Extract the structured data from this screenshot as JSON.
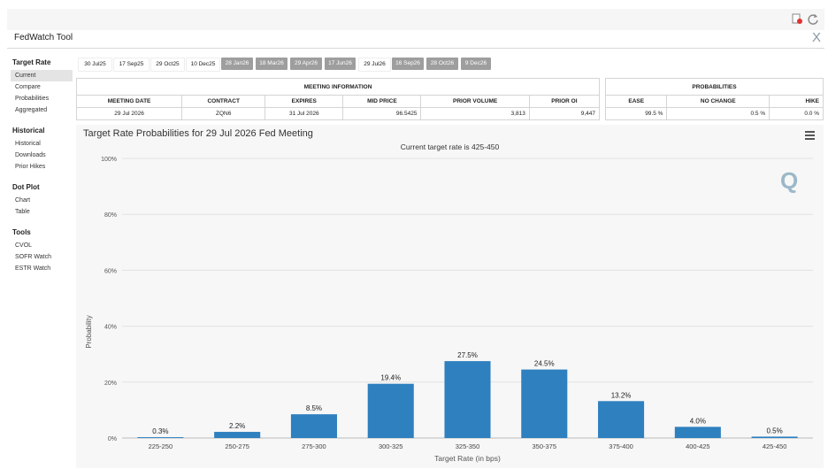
{
  "app": {
    "title": "FedWatch Tool",
    "close_glyph": "X"
  },
  "sidebar": [
    {
      "title": "Target Rate",
      "items": [
        {
          "label": "Current",
          "active": true
        },
        {
          "label": "Compare",
          "active": false
        },
        {
          "label": "Probabilities",
          "active": false
        },
        {
          "label": "Aggregated",
          "active": false
        }
      ]
    },
    {
      "title": "Historical",
      "items": [
        {
          "label": "Historical",
          "active": false
        },
        {
          "label": "Downloads",
          "active": false
        },
        {
          "label": "Prior Hikes",
          "active": false
        }
      ]
    },
    {
      "title": "Dot Plot",
      "items": [
        {
          "label": "Chart",
          "active": false
        },
        {
          "label": "Table",
          "active": false
        }
      ]
    },
    {
      "title": "Tools",
      "items": [
        {
          "label": "CVOL",
          "active": false
        },
        {
          "label": "SOFR Watch",
          "active": false
        },
        {
          "label": "ESTR Watch",
          "active": false
        }
      ]
    }
  ],
  "tabs": [
    {
      "label": "30 Jul25",
      "style": "plain"
    },
    {
      "label": "17 Sep25",
      "style": "plain"
    },
    {
      "label": "29 Oct25",
      "style": "plain"
    },
    {
      "label": "10 Dec25",
      "style": "plain"
    },
    {
      "label": "28 Jan26",
      "style": "gray"
    },
    {
      "label": "18 Mar26",
      "style": "gray"
    },
    {
      "label": "29 Apr26",
      "style": "gray"
    },
    {
      "label": "17 Jun26",
      "style": "gray"
    },
    {
      "label": "29 Jul26",
      "style": "plain"
    },
    {
      "label": "16 Sep26",
      "style": "gray"
    },
    {
      "label": "28 Oct26",
      "style": "gray"
    },
    {
      "label": "9 Dec26",
      "style": "gray"
    }
  ],
  "meeting_info": {
    "title": "MEETING INFORMATION",
    "headers": [
      "MEETING DATE",
      "CONTRACT",
      "EXPIRES",
      "MID PRICE",
      "PRIOR VOLUME",
      "PRIOR OI"
    ],
    "values": [
      "29 Jul 2026",
      "ZQN6",
      "31 Jul 2026",
      "96.5425",
      "3,813",
      "9,447"
    ]
  },
  "probabilities": {
    "title": "PROBABILITIES",
    "headers": [
      "EASE",
      "NO CHANGE",
      "HIKE"
    ],
    "values": [
      "99.5 %",
      "0.5 %",
      "0.0 %"
    ]
  },
  "chart_header": {
    "title": "Target Rate Probabilities for 29 Jul 2026 Fed Meeting",
    "subtitle": "Current target rate is 425-450",
    "watermark": "Q"
  },
  "chart_data": {
    "type": "bar",
    "categories": [
      "225-250",
      "250-275",
      "275-300",
      "300-325",
      "325-350",
      "350-375",
      "375-400",
      "400-425",
      "425-450"
    ],
    "values": [
      0.3,
      2.2,
      8.5,
      19.4,
      27.5,
      24.5,
      13.2,
      4.0,
      0.5
    ],
    "data_labels": [
      "0.3%",
      "2.2%",
      "8.5%",
      "19.4%",
      "27.5%",
      "24.5%",
      "13.2%",
      "4.0%",
      "0.5%"
    ],
    "y_ticks": [
      "0%",
      "20%",
      "40%",
      "60%",
      "80%",
      "100%"
    ],
    "ylim": [
      0,
      100
    ],
    "xlabel": "Target Rate (in bps)",
    "ylabel": "Probability",
    "bar_color": "#2e80bf",
    "grid": true
  }
}
